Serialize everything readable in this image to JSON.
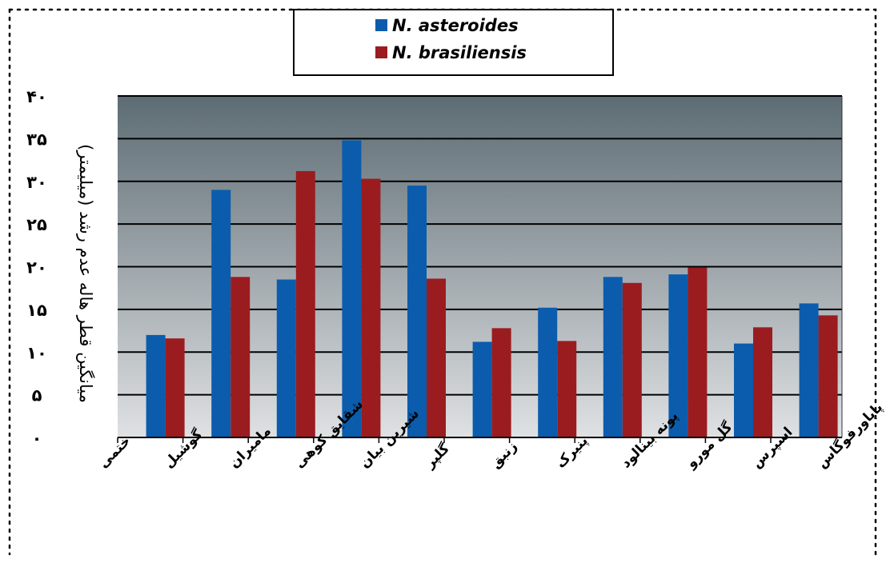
{
  "chart_data": {
    "type": "bar",
    "title": "",
    "xlabel": "",
    "ylabel": "میانگین قطر هاله عدم رشد (میلیمتر)",
    "categories": [
      "ختمی",
      "گوشیل",
      "مامیران",
      "شقایق کوهی",
      "شیرین بیان",
      "گلپر",
      "زنبق",
      "پنیرک",
      "پونه بینالود",
      "گل مورو",
      "اسپرس",
      "پاپاورفوگاس"
    ],
    "series": [
      {
        "name": "N. asteroides",
        "color": "#0b5cad",
        "values": [
          null,
          12,
          29,
          18.5,
          34.8,
          29.5,
          11.2,
          15.2,
          18.8,
          19.1,
          11,
          15.7
        ]
      },
      {
        "name": "N. brasiliensis",
        "color": "#9b1c1f",
        "values": [
          null,
          11.6,
          18.8,
          31.2,
          30.3,
          18.6,
          12.8,
          11.3,
          18.1,
          19.9,
          12.9,
          14.3
        ]
      }
    ],
    "ylim": [
      0,
      40
    ],
    "yticks": [
      "۰",
      "۵",
      "۱۰",
      "۱۵",
      "۲۰",
      "۲۵",
      "۳۰",
      "۳۵",
      "۴۰"
    ],
    "ytick_values": [
      0,
      5,
      10,
      15,
      20,
      25,
      30,
      35,
      40
    ],
    "grid": true,
    "legend": {
      "placement": "top-center",
      "entries": [
        "N. asteroides",
        "N. brasiliensis"
      ]
    }
  }
}
